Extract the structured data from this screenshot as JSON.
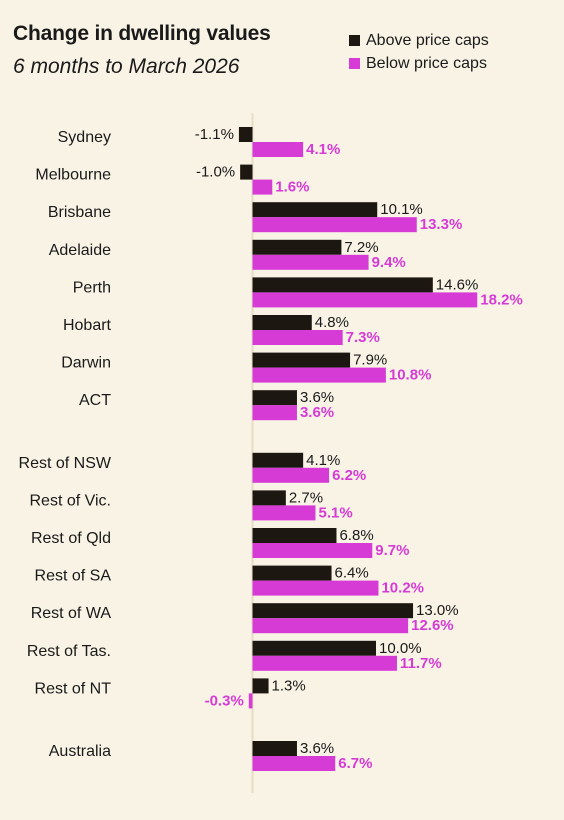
{
  "chart_data": {
    "type": "bar",
    "orientation": "horizontal",
    "title": "Change in dwelling values",
    "subtitle": "6 months to March 2026",
    "legend_position": "top-right",
    "categories": [
      "Sydney",
      "Melbourne",
      "Brisbane",
      "Adelaide",
      "Perth",
      "Hobart",
      "Darwin",
      "ACT",
      "Rest of NSW",
      "Rest of Vic.",
      "Rest of Qld",
      "Rest of SA",
      "Rest of WA",
      "Rest of Tas.",
      "Rest of NT",
      "Australia"
    ],
    "category_groups": [
      [
        0,
        1,
        2,
        3,
        4,
        5,
        6,
        7
      ],
      [
        8,
        9,
        10,
        11,
        12,
        13,
        14
      ],
      [
        15
      ]
    ],
    "series": [
      {
        "name": "Above price caps",
        "color": "#1c1710",
        "values": [
          -1.1,
          -1.0,
          10.1,
          7.2,
          14.6,
          4.8,
          7.9,
          3.6,
          4.1,
          2.7,
          6.8,
          6.4,
          13.0,
          10.0,
          1.3,
          3.6
        ],
        "labels": [
          "-1.1%",
          "-1.0%",
          "10.1%",
          "7.2%",
          "14.6%",
          "4.8%",
          "7.9%",
          "3.6%",
          "4.1%",
          "2.7%",
          "6.8%",
          "6.4%",
          "13.0%",
          "10.0%",
          "1.3%",
          "3.6%"
        ]
      },
      {
        "name": "Below price caps",
        "color": "#d63bd6",
        "values": [
          4.1,
          1.6,
          13.3,
          9.4,
          18.2,
          7.3,
          10.8,
          3.6,
          6.2,
          5.1,
          9.7,
          10.2,
          12.6,
          11.7,
          -0.3,
          6.7
        ],
        "labels": [
          "4.1%",
          "1.6%",
          "13.3%",
          "9.4%",
          "18.2%",
          "7.3%",
          "10.8%",
          "3.6%",
          "6.2%",
          "5.1%",
          "9.7%",
          "10.2%",
          "12.6%",
          "11.7%",
          "-0.3%",
          "6.7%"
        ]
      }
    ],
    "xlim": [
      -1.5,
      18.2
    ],
    "grid": false,
    "xlabel": "",
    "ylabel": ""
  }
}
